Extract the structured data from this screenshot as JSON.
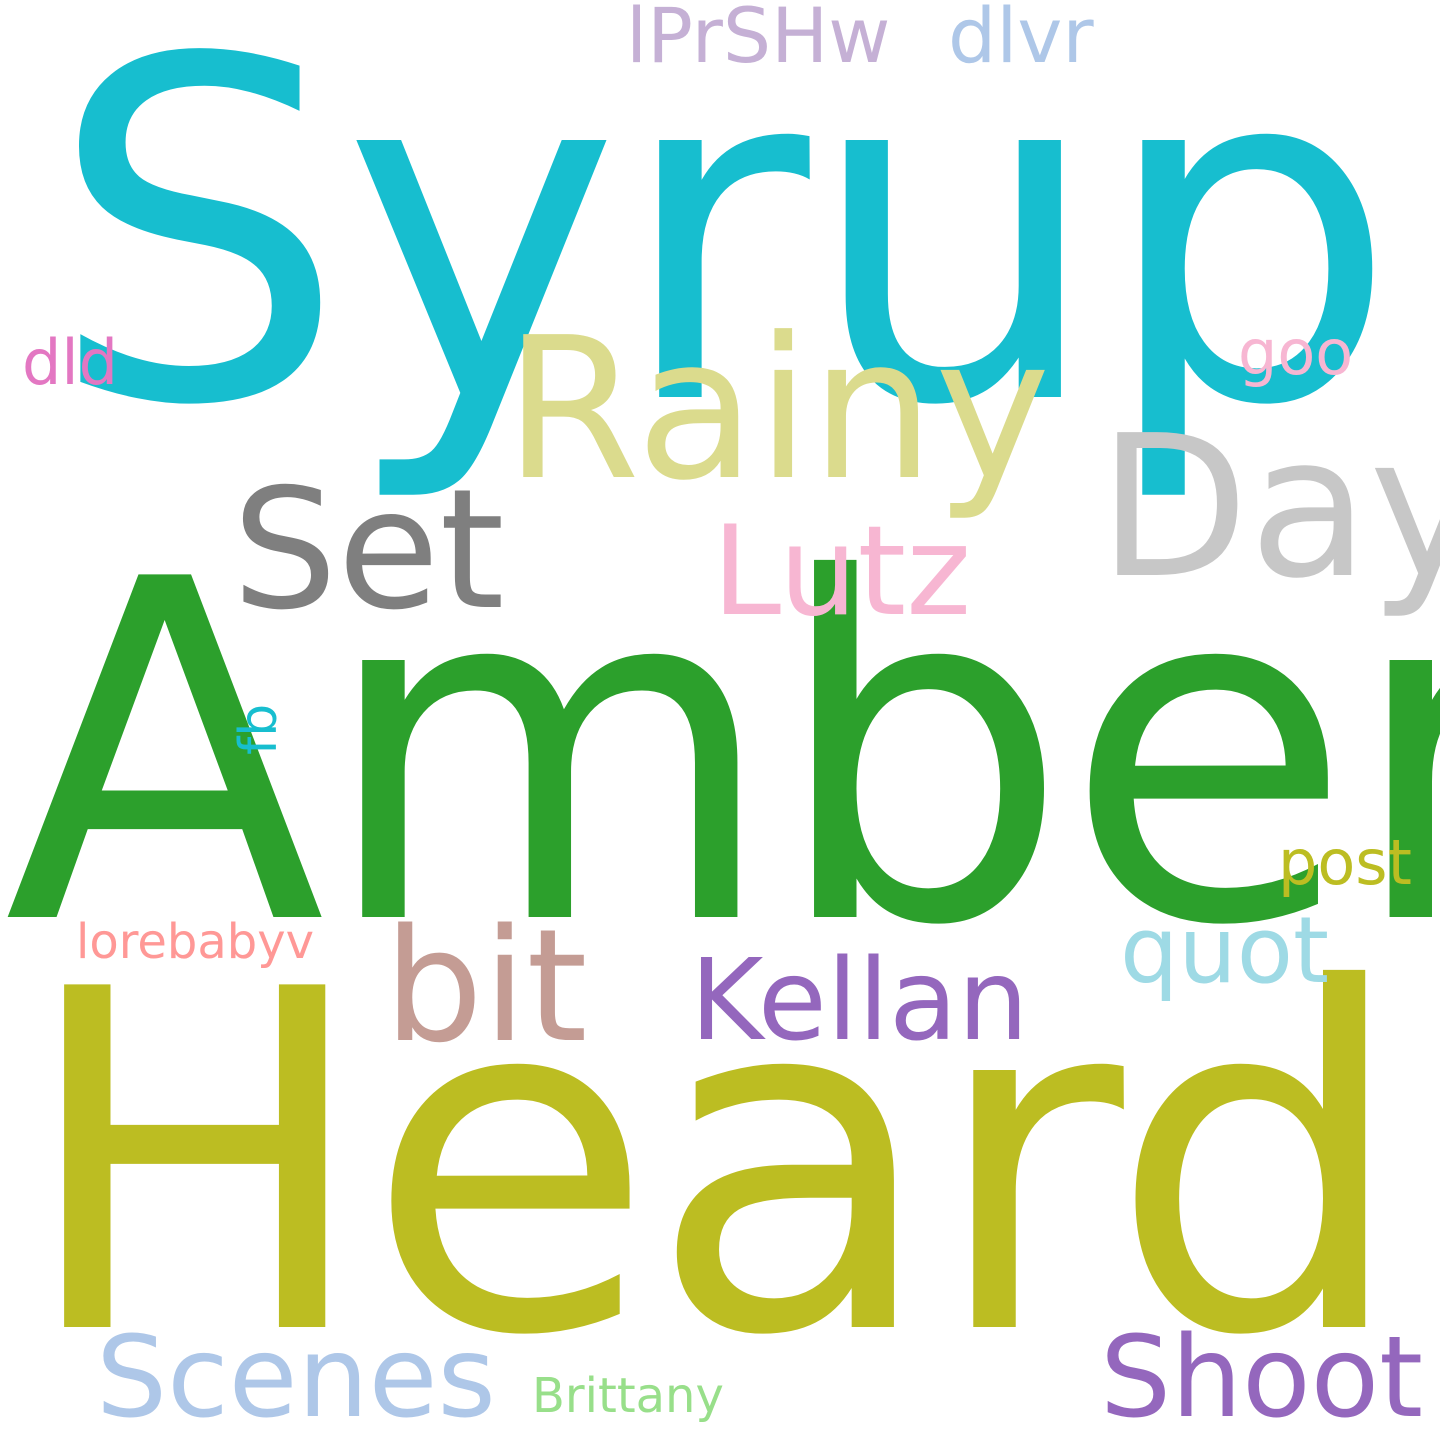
{
  "words": [
    {
      "text": "Syrup",
      "color": "#17becf"
    },
    {
      "text": "Amber",
      "color": "#2ca02c"
    },
    {
      "text": "Heard",
      "color": "#bcbd22"
    },
    {
      "text": "Rainy",
      "color": "#dbdb8d"
    },
    {
      "text": "Day",
      "color": "#c7c7c7"
    },
    {
      "text": "Set",
      "color": "#7f7f7f"
    },
    {
      "text": "Lutz",
      "color": "#f7b6d2"
    },
    {
      "text": "bit",
      "color": "#c49c94"
    },
    {
      "text": "Kellan",
      "color": "#9467bd"
    },
    {
      "text": "quot",
      "color": "#9edae5"
    },
    {
      "text": "Scenes",
      "color": "#aec7e8"
    },
    {
      "text": "Shoot",
      "color": "#9467bd"
    },
    {
      "text": "lPrSHw",
      "color": "#c5b0d5"
    },
    {
      "text": "dlvr",
      "color": "#aec7e8"
    },
    {
      "text": "dld",
      "color": "#e377c2"
    },
    {
      "text": "goo",
      "color": "#f7b6d2"
    },
    {
      "text": "post",
      "color": "#bcbd22"
    },
    {
      "text": "lorebabyv",
      "color": "#ff9896"
    },
    {
      "text": "Brittany",
      "color": "#98df8a"
    },
    {
      "text": "fb",
      "color": "#17becf"
    }
  ]
}
